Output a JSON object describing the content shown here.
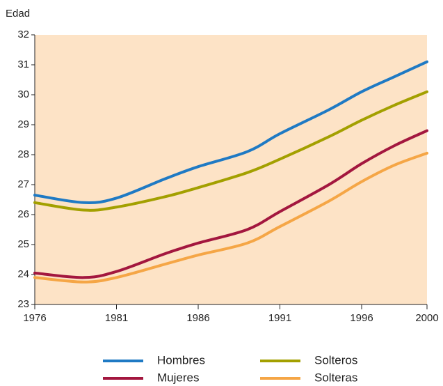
{
  "chart_data": {
    "type": "line",
    "ylabel": "Edad",
    "x": [
      1976,
      1979,
      1981,
      1984,
      1986,
      1989,
      1991,
      1994,
      1996,
      1998,
      2000
    ],
    "series": [
      {
        "name": "Hombres",
        "color": "#1f7ac4",
        "values": [
          26.65,
          26.4,
          26.55,
          27.2,
          27.6,
          28.1,
          28.7,
          29.5,
          30.1,
          30.6,
          31.1
        ]
      },
      {
        "name": "Mujeres",
        "color": "#a3173f",
        "values": [
          24.05,
          23.9,
          24.1,
          24.7,
          25.05,
          25.5,
          26.1,
          27.0,
          27.7,
          28.3,
          28.8
        ]
      },
      {
        "name": "Solteros",
        "color": "#a3a000",
        "values": [
          26.4,
          26.15,
          26.25,
          26.6,
          26.9,
          27.4,
          27.85,
          28.6,
          29.15,
          29.65,
          30.1
        ]
      },
      {
        "name": "Solteras",
        "color": "#f5a646",
        "values": [
          23.9,
          23.75,
          23.9,
          24.35,
          24.65,
          25.05,
          25.6,
          26.45,
          27.1,
          27.65,
          28.05
        ]
      }
    ],
    "xlim": [
      1976,
      2000
    ],
    "xticks": [
      1976,
      1981,
      1986,
      1991,
      1996,
      2000
    ],
    "ylim": [
      23,
      32
    ],
    "yticks": [
      23,
      24,
      25,
      26,
      27,
      28,
      29,
      30,
      31,
      32
    ],
    "background": "#fde3c6"
  }
}
